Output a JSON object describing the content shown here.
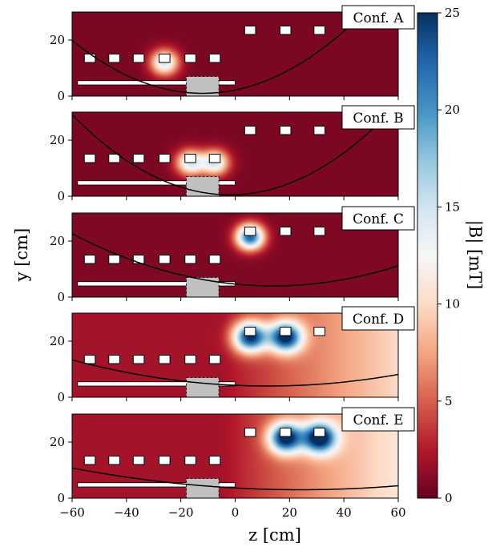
{
  "chart_data": {
    "type": "heatmap",
    "xlabel": "z [cm]",
    "ylabel": "y [cm]",
    "colorbar_label": "|B| [mT]",
    "xlim": [
      -60,
      60
    ],
    "ylim": [
      0,
      30
    ],
    "clim": [
      0,
      25
    ],
    "x_ticks": [
      -60,
      -40,
      -20,
      0,
      20,
      40,
      60
    ],
    "y_ticks": [
      0,
      20
    ],
    "colorbar_ticks": [
      0,
      5,
      10,
      15,
      20,
      25
    ],
    "colormap": [
      "#67001f",
      "#b2182b",
      "#d6604d",
      "#f4a582",
      "#fddbc7",
      "#f7f7f7",
      "#d1e5f0",
      "#92c5de",
      "#4393c3",
      "#2166ac",
      "#053061"
    ],
    "structure": {
      "lower_rail": {
        "z_start": -58,
        "z_end": 0,
        "y_bottom": 4,
        "y_top": 5.5
      },
      "gray_block": {
        "z_start": -18,
        "z_end": -6,
        "y_bottom": 0,
        "y_top": 7
      },
      "magnets_lower": [
        -53.5,
        -44.5,
        -35.5,
        -26,
        -16.5,
        -7.5
      ],
      "magnets_upper": [
        5.5,
        18.5,
        31
      ],
      "magnets_lower_y": 13.5,
      "magnets_upper_y": 23.5,
      "magnet_width": 4,
      "magnet_height": 3
    },
    "panels": [
      {
        "label": "Conf. A",
        "base_field": 0.7,
        "gradient": 0,
        "trajectory": {
          "z_min": -12,
          "y_min": 1,
          "coeff": 0.0082
        },
        "hotspots": [
          {
            "z": -26,
            "y": 12,
            "B": 14,
            "r": 5
          }
        ]
      },
      {
        "label": "Conf. B",
        "base_field": 0.7,
        "gradient": 0,
        "trajectory": {
          "z_min": -2,
          "y_min": 0.5,
          "coeff": 0.0085
        },
        "hotspots": [
          {
            "z": -16.5,
            "y": 12,
            "B": 14,
            "r": 5
          },
          {
            "z": -7.5,
            "y": 12,
            "B": 14,
            "r": 5
          }
        ]
      },
      {
        "label": "Conf. C",
        "base_field": 0.8,
        "gradient": 0,
        "trajectory": {
          "z_min": 14,
          "y_min": 4,
          "coeff": 0.0034
        },
        "hotspots": [
          {
            "z": 5.5,
            "y": 21.5,
            "B": 22,
            "r": 5
          }
        ]
      },
      {
        "label": "Conf. D",
        "base_field": 2,
        "gradient": 8,
        "trajectory": {
          "z_min": 12,
          "y_min": 4,
          "coeff": 0.0018
        },
        "hotspots": [
          {
            "z": 5.5,
            "y": 21.5,
            "B": 22,
            "r": 6
          },
          {
            "z": 18.5,
            "y": 21.5,
            "B": 22,
            "r": 6
          }
        ]
      },
      {
        "label": "Conf. E",
        "base_field": 2,
        "gradient": 9,
        "trajectory": {
          "z_min": 24,
          "y_min": 3,
          "coeff": 0.0011
        },
        "hotspots": [
          {
            "z": 18.5,
            "y": 21.5,
            "B": 22,
            "r": 6
          },
          {
            "z": 31,
            "y": 21.5,
            "B": 22,
            "r": 6
          }
        ]
      }
    ]
  }
}
